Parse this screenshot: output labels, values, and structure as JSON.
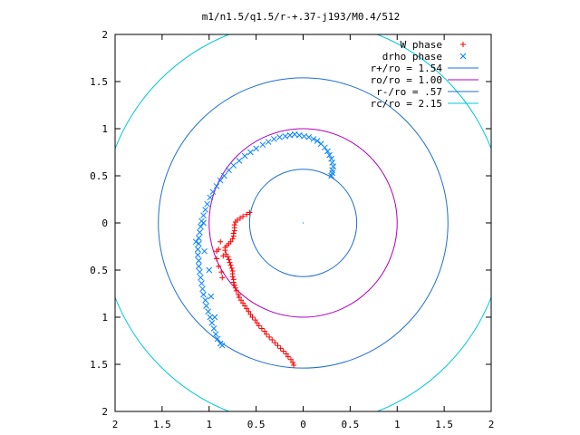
{
  "chart_data": {
    "type": "scatter",
    "title": "m1/n1.5/q1.5/r-+.37-j193/M0.4/512",
    "xlabel": "",
    "ylabel": "",
    "xlim": [
      -2,
      2
    ],
    "ylim": [
      -2,
      2
    ],
    "x_ticks": [
      -2,
      -1.5,
      -1,
      -0.5,
      0,
      0.5,
      1,
      1.5,
      2
    ],
    "y_ticks": [
      -2,
      -1.5,
      -1,
      -0.5,
      0,
      0.5,
      1,
      1.5,
      2
    ],
    "x_tick_labels": [
      "2",
      "1.5",
      "1",
      "0.5",
      "0",
      "0.5",
      "1",
      "1.5",
      "2"
    ],
    "y_tick_labels": [
      "2",
      "1.5",
      "1",
      "0.5",
      "0",
      "0.5",
      "1",
      "1.5",
      "2"
    ],
    "grid": false,
    "legend_position": "top-right",
    "series": [
      {
        "name": "W phase",
        "kind": "points",
        "marker": "plus",
        "color": "#ff0000",
        "points": [
          [
            -0.57,
            0.11
          ],
          [
            -0.6,
            0.09
          ],
          [
            -0.64,
            0.07
          ],
          [
            -0.67,
            0.05
          ],
          [
            -0.7,
            0.03
          ],
          [
            -0.72,
            0.01
          ],
          [
            -0.73,
            -0.02
          ],
          [
            -0.73,
            -0.05
          ],
          [
            -0.73,
            -0.08
          ],
          [
            -0.74,
            -0.11
          ],
          [
            -0.74,
            -0.14
          ],
          [
            -0.75,
            -0.17
          ],
          [
            -0.77,
            -0.2
          ],
          [
            -0.79,
            -0.22
          ],
          [
            -0.81,
            -0.24
          ],
          [
            -0.83,
            -0.26
          ],
          [
            -0.83,
            -0.29
          ],
          [
            -0.82,
            -0.33
          ],
          [
            -0.8,
            -0.36
          ],
          [
            -0.79,
            -0.39
          ],
          [
            -0.78,
            -0.42
          ],
          [
            -0.77,
            -0.45
          ],
          [
            -0.76,
            -0.48
          ],
          [
            -0.75,
            -0.51
          ],
          [
            -0.75,
            -0.54
          ],
          [
            -0.75,
            -0.57
          ],
          [
            -0.74,
            -0.6
          ],
          [
            -0.74,
            -0.63
          ],
          [
            -0.73,
            -0.66
          ],
          [
            -0.72,
            -0.69
          ],
          [
            -0.71,
            -0.72
          ],
          [
            -0.69,
            -0.76
          ],
          [
            -0.68,
            -0.79
          ],
          [
            -0.66,
            -0.82
          ],
          [
            -0.64,
            -0.85
          ],
          [
            -0.62,
            -0.88
          ],
          [
            -0.6,
            -0.91
          ],
          [
            -0.58,
            -0.94
          ],
          [
            -0.56,
            -0.97
          ],
          [
            -0.54,
            -1.0
          ],
          [
            -0.51,
            -1.03
          ],
          [
            -0.49,
            -1.06
          ],
          [
            -0.47,
            -1.09
          ],
          [
            -0.44,
            -1.12
          ],
          [
            -0.41,
            -1.15
          ],
          [
            -0.39,
            -1.18
          ],
          [
            -0.36,
            -1.21
          ],
          [
            -0.33,
            -1.24
          ],
          [
            -0.3,
            -1.27
          ],
          [
            -0.27,
            -1.3
          ],
          [
            -0.24,
            -1.33
          ],
          [
            -0.21,
            -1.36
          ],
          [
            -0.18,
            -1.39
          ],
          [
            -0.16,
            -1.42
          ],
          [
            -0.13,
            -1.45
          ],
          [
            -0.11,
            -1.48
          ],
          [
            -0.1,
            -1.51
          ],
          [
            -0.88,
            -0.2
          ],
          [
            -0.9,
            -0.28
          ],
          [
            -0.92,
            -0.38
          ],
          [
            -0.9,
            -0.46
          ],
          [
            -0.87,
            -0.52
          ],
          [
            -0.86,
            -0.58
          ],
          [
            -0.92,
            -0.3
          ],
          [
            -0.85,
            -0.35
          ]
        ]
      },
      {
        "name": "drho phase",
        "kind": "points",
        "marker": "cross",
        "color": "#0080ff",
        "points": [
          [
            0.3,
            0.5
          ],
          [
            0.31,
            0.53
          ],
          [
            0.31,
            0.56
          ],
          [
            0.32,
            0.6
          ],
          [
            0.31,
            0.64
          ],
          [
            0.3,
            0.68
          ],
          [
            0.28,
            0.72
          ],
          [
            0.26,
            0.76
          ],
          [
            0.23,
            0.8
          ],
          [
            0.19,
            0.84
          ],
          [
            0.15,
            0.87
          ],
          [
            0.11,
            0.89
          ],
          [
            0.06,
            0.91
          ],
          [
            0.01,
            0.92
          ],
          [
            -0.04,
            0.93
          ],
          [
            -0.09,
            0.94
          ],
          [
            -0.14,
            0.93
          ],
          [
            -0.19,
            0.92
          ],
          [
            -0.25,
            0.91
          ],
          [
            -0.31,
            0.89
          ],
          [
            -0.37,
            0.86
          ],
          [
            -0.43,
            0.83
          ],
          [
            -0.5,
            0.79
          ],
          [
            -0.56,
            0.75
          ],
          [
            -0.62,
            0.71
          ],
          [
            -0.68,
            0.66
          ],
          [
            -0.74,
            0.61
          ],
          [
            -0.79,
            0.56
          ],
          [
            -0.84,
            0.5
          ],
          [
            -0.88,
            0.45
          ],
          [
            -0.92,
            0.39
          ],
          [
            -0.96,
            0.33
          ],
          [
            -0.99,
            0.27
          ],
          [
            -1.02,
            0.2
          ],
          [
            -1.04,
            0.14
          ],
          [
            -1.06,
            0.08
          ],
          [
            -1.08,
            0.02
          ],
          [
            -1.09,
            -0.04
          ],
          [
            -1.1,
            -0.1
          ],
          [
            -1.11,
            -0.16
          ],
          [
            -1.11,
            -0.22
          ],
          [
            -1.12,
            -0.28
          ],
          [
            -1.12,
            -0.34
          ],
          [
            -1.11,
            -0.4
          ],
          [
            -1.11,
            -0.46
          ],
          [
            -1.1,
            -0.52
          ],
          [
            -1.09,
            -0.58
          ],
          [
            -1.08,
            -0.64
          ],
          [
            -1.07,
            -0.7
          ],
          [
            -1.06,
            -0.76
          ],
          [
            -1.04,
            -0.82
          ],
          [
            -1.03,
            -0.88
          ],
          [
            -1.01,
            -0.94
          ],
          [
            -0.99,
            -1.0
          ],
          [
            -0.97,
            -1.06
          ],
          [
            -0.95,
            -1.12
          ],
          [
            -0.93,
            -1.18
          ],
          [
            -0.91,
            -1.23
          ],
          [
            -0.88,
            -1.28
          ],
          [
            -0.86,
            -1.3
          ],
          [
            -1.05,
            -0.3
          ],
          [
            -1.0,
            -0.5
          ],
          [
            -1.06,
            0.0
          ],
          [
            -1.14,
            -0.2
          ],
          [
            -0.98,
            -0.78
          ],
          [
            -0.94,
            -1.0
          ]
        ]
      },
      {
        "name": "r+/ro = 1.54",
        "kind": "circle",
        "radius": 1.54,
        "color": "#1f6fd0"
      },
      {
        "name": "ro/ro = 1.00",
        "kind": "circle",
        "radius": 1.0,
        "color": "#b000c0"
      },
      {
        "name": "r-/ro = .57",
        "kind": "circle",
        "radius": 0.57,
        "color": "#1f6fd0"
      },
      {
        "name": "rc/ro = 2.15",
        "kind": "circle",
        "radius": 2.15,
        "color": "#00c8d8"
      }
    ]
  }
}
